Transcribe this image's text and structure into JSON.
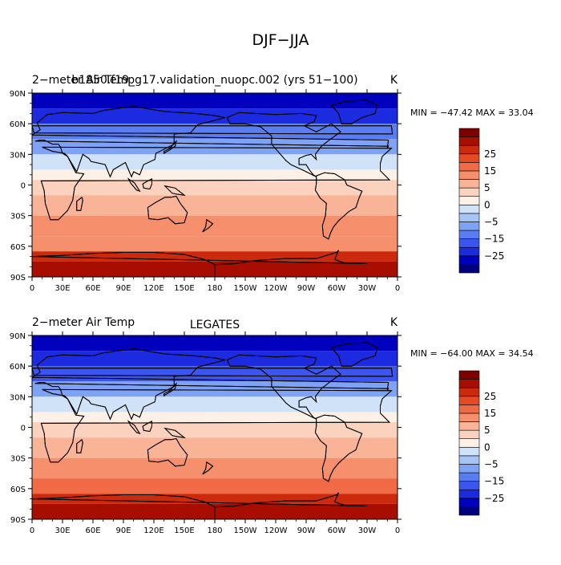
{
  "page_title": "DJF−JJA",
  "colors": {
    "levels": [
      "#00007f",
      "#0000bd",
      "#1c2ae0",
      "#3c55ee",
      "#5a7ef2",
      "#7ea2f4",
      "#a6c4f6",
      "#d0e2f8",
      "#fdf0e6",
      "#fbd2bd",
      "#f9b396",
      "#f58f6c",
      "#ef6a45",
      "#e54a25",
      "#cc2a0c",
      "#a80e00",
      "#7c0000"
    ],
    "land_outline": "#000000"
  },
  "panels": [
    {
      "title_left": "2−meter Air Temp",
      "title_center": "b1850.f19_g17.validation_nuopc.002 (yrs 51−100)",
      "units": "K",
      "min_max": "MIN = −47.42  MAX =  33.04",
      "colorbar_labels": [
        "25",
        "15",
        "5",
        "0",
        "−5",
        "−15",
        "−25"
      ]
    },
    {
      "title_left": "2−meter Air Temp",
      "title_center": "LEGATES",
      "units": "K",
      "min_max": "MIN = −64.00  MAX =  34.54",
      "colorbar_labels": [
        "25",
        "15",
        "5",
        "0",
        "−5",
        "−15",
        "−25"
      ]
    }
  ],
  "chart_data": [
    {
      "type": "heatmap",
      "title": "2−meter Air Temp",
      "subtitle": "b1850.f19_g17.validation_nuopc.002 (yrs 51−100)",
      "units": "K",
      "x_ticks": [
        "0",
        "30E",
        "60E",
        "90E",
        "120E",
        "150E",
        "180",
        "150W",
        "120W",
        "90W",
        "60W",
        "30W",
        "0"
      ],
      "y_ticks": [
        "90N",
        "60N",
        "30N",
        "0",
        "30S",
        "60S",
        "90S"
      ],
      "xlim": [
        0,
        360
      ],
      "ylim": [
        -90,
        90
      ],
      "colorbar_levels": [
        -30,
        -25,
        -20,
        -15,
        -10,
        -5,
        -2,
        0,
        2,
        5,
        10,
        15,
        20,
        25,
        30
      ],
      "min": -47.42,
      "max": 33.04,
      "zonal_mean_bands": [
        {
          "lat_from": 90,
          "lat_to": 75,
          "value": -35
        },
        {
          "lat_from": 75,
          "lat_to": 60,
          "value": -28
        },
        {
          "lat_from": 60,
          "lat_to": 45,
          "value": -20
        },
        {
          "lat_from": 45,
          "lat_to": 30,
          "value": -12
        },
        {
          "lat_from": 30,
          "lat_to": 15,
          "value": -5
        },
        {
          "lat_from": 15,
          "lat_to": 5,
          "value": -1
        },
        {
          "lat_from": 5,
          "lat_to": -10,
          "value": 1
        },
        {
          "lat_from": -10,
          "lat_to": -30,
          "value": 4
        },
        {
          "lat_from": -30,
          "lat_to": -50,
          "value": 6
        },
        {
          "lat_from": -50,
          "lat_to": -65,
          "value": 9
        },
        {
          "lat_from": -65,
          "lat_to": -75,
          "value": 20
        },
        {
          "lat_from": -75,
          "lat_to": -90,
          "value": 27
        }
      ]
    },
    {
      "type": "heatmap",
      "title": "2−meter Air Temp",
      "subtitle": "LEGATES",
      "units": "K",
      "x_ticks": [
        "0",
        "30E",
        "60E",
        "90E",
        "120E",
        "150E",
        "180",
        "150W",
        "120W",
        "90W",
        "60W",
        "30W",
        "0"
      ],
      "y_ticks": [
        "90N",
        "60N",
        "30N",
        "0",
        "30S",
        "60S",
        "90S"
      ],
      "xlim": [
        0,
        360
      ],
      "ylim": [
        -90,
        90
      ],
      "colorbar_levels": [
        -30,
        -25,
        -20,
        -15,
        -10,
        -5,
        -2,
        0,
        2,
        5,
        10,
        15,
        20,
        25,
        30
      ],
      "min": -64.0,
      "max": 34.54,
      "zonal_mean_bands": [
        {
          "lat_from": 90,
          "lat_to": 75,
          "value": -38
        },
        {
          "lat_from": 75,
          "lat_to": 60,
          "value": -30
        },
        {
          "lat_from": 60,
          "lat_to": 45,
          "value": -22
        },
        {
          "lat_from": 45,
          "lat_to": 30,
          "value": -13
        },
        {
          "lat_from": 30,
          "lat_to": 15,
          "value": -5
        },
        {
          "lat_from": 15,
          "lat_to": 5,
          "value": -1
        },
        {
          "lat_from": 5,
          "lat_to": -10,
          "value": 1
        },
        {
          "lat_from": -10,
          "lat_to": -30,
          "value": 4
        },
        {
          "lat_from": -30,
          "lat_to": -50,
          "value": 7
        },
        {
          "lat_from": -50,
          "lat_to": -65,
          "value": 12
        },
        {
          "lat_from": -65,
          "lat_to": -75,
          "value": 20
        },
        {
          "lat_from": -75,
          "lat_to": -90,
          "value": 26
        }
      ]
    }
  ]
}
